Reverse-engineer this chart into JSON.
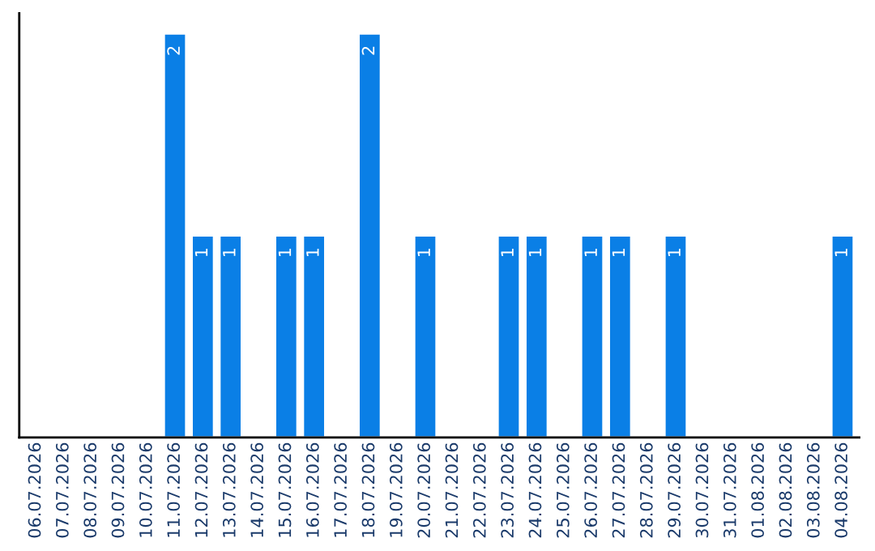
{
  "chart_data": {
    "type": "bar",
    "categories": [
      "06.07.2026",
      "07.07.2026",
      "08.07.2026",
      "09.07.2026",
      "10.07.2026",
      "11.07.2026",
      "12.07.2026",
      "13.07.2026",
      "14.07.2026",
      "15.07.2026",
      "16.07.2026",
      "17.07.2026",
      "18.07.2026",
      "19.07.2026",
      "20.07.2026",
      "21.07.2026",
      "22.07.2026",
      "23.07.2026",
      "24.07.2026",
      "25.07.2026",
      "26.07.2026",
      "27.07.2026",
      "28.07.2026",
      "29.07.2026",
      "30.07.2026",
      "31.07.2026",
      "01.08.2026",
      "02.08.2026",
      "03.08.2026",
      "04.08.2026"
    ],
    "values": [
      null,
      null,
      null,
      null,
      null,
      2,
      1,
      1,
      null,
      1,
      1,
      null,
      2,
      null,
      1,
      null,
      null,
      1,
      1,
      null,
      1,
      1,
      null,
      1,
      null,
      null,
      null,
      null,
      null,
      1
    ],
    "value_labels": [
      null,
      null,
      null,
      null,
      null,
      "2",
      "1",
      "1",
      null,
      "1",
      "1",
      null,
      "2",
      null,
      "1",
      null,
      null,
      "1",
      "1",
      null,
      "1",
      "1",
      null,
      "1",
      null,
      null,
      null,
      null,
      null,
      "1"
    ],
    "color": "#0a7fe6",
    "ylim": [
      0,
      2.1
    ],
    "tick_labels": "x",
    "grid": false
  }
}
